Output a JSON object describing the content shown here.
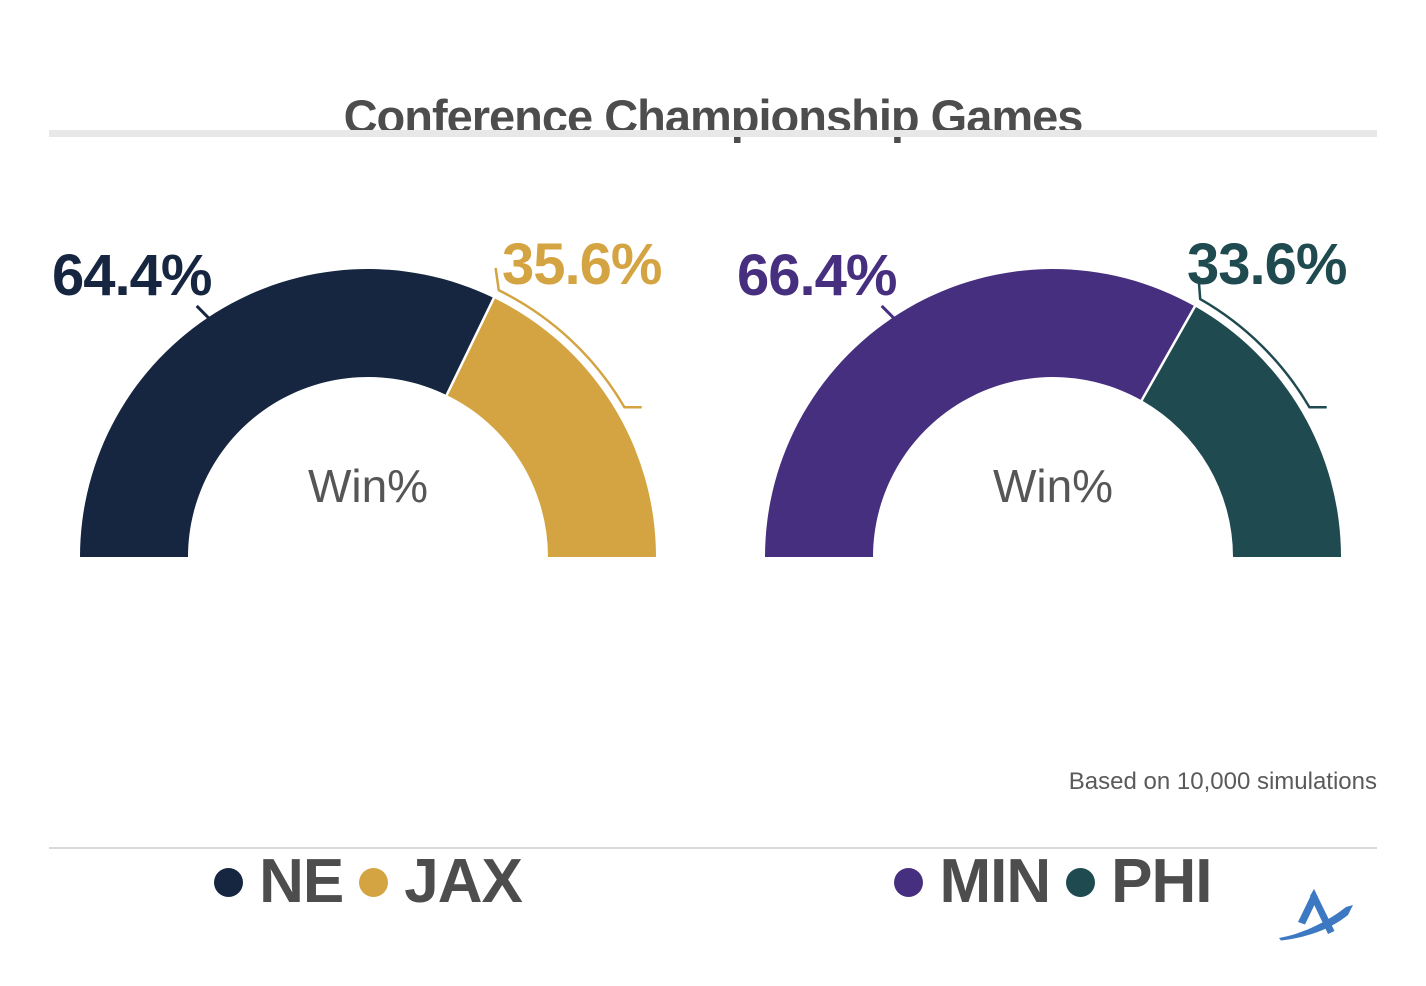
{
  "title": "Conference Championship Games",
  "footnote": "Based on 10,000 simulations",
  "brand": {
    "logo_icon": "athletic-a-swoosh-logo",
    "logo_color": "#3c79c2"
  },
  "style_colors": {
    "title_text": "#4d4d4d",
    "center_label_text": "#565656",
    "legend_text": "#4d4d4d",
    "footnote_text": "#5a5a5a",
    "divider_top": "#e8e8e8",
    "divider_bottom": "#d9d9d9",
    "background": "#ffffff"
  },
  "chart_data": [
    {
      "type": "pie",
      "subtype": "half-donut-gauge",
      "center_label": "Win%",
      "units": "%",
      "legend_position": "bottom",
      "series": [
        {
          "name": "NE",
          "value": 64.4,
          "label": "64.4%",
          "color": "#162540"
        },
        {
          "name": "JAX",
          "value": 35.6,
          "label": "35.6%",
          "color": "#d3a441"
        }
      ]
    },
    {
      "type": "pie",
      "subtype": "half-donut-gauge",
      "center_label": "Win%",
      "units": "%",
      "legend_position": "bottom",
      "series": [
        {
          "name": "MIN",
          "value": 66.4,
          "label": "66.4%",
          "color": "#472f80"
        },
        {
          "name": "PHI",
          "value": 33.6,
          "label": "33.6%",
          "color": "#1f4a50"
        }
      ]
    }
  ]
}
